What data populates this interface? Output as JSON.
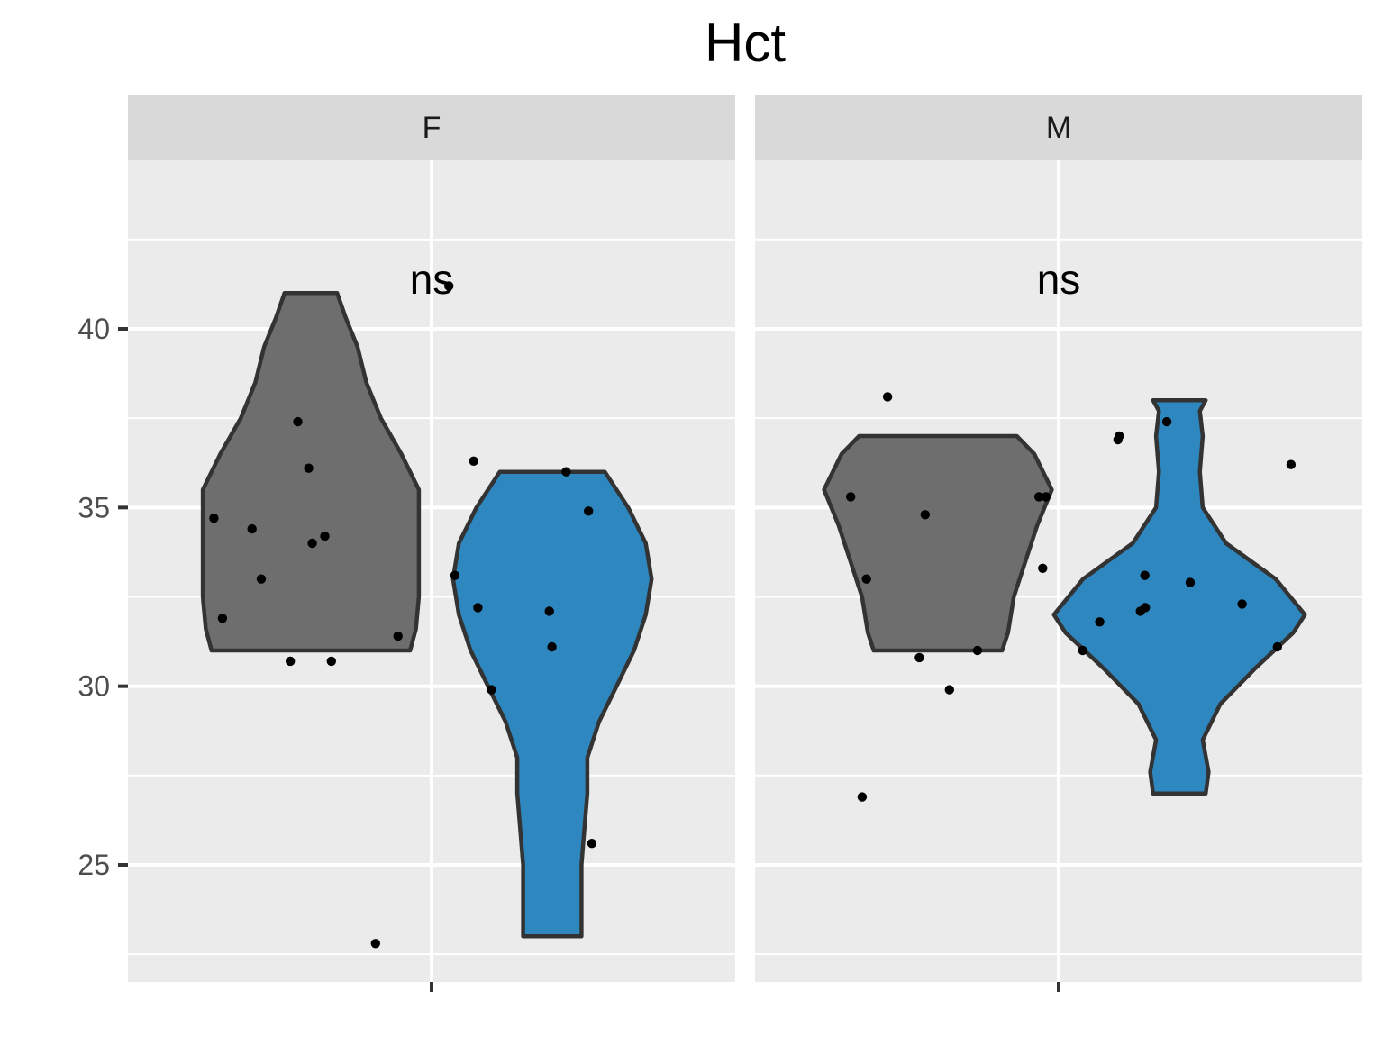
{
  "chart_data": {
    "type": "violin",
    "title": "Hct",
    "xlabel": "",
    "ylabel": "",
    "ylim": [
      21.7,
      44.5
    ],
    "y_ticks": [
      25,
      30,
      35,
      40
    ],
    "grid": true,
    "legend": "none",
    "colors": {
      "group1": "#6e6e6e",
      "group2": "#2f87c0",
      "outline": "#333333",
      "point": "#000000",
      "panel_bg": "#ebebeb",
      "strip_bg": "#d9d9d9",
      "grid": "#ffffff"
    },
    "panels": [
      {
        "strip": "F",
        "significance": "ns",
        "violins": [
          {
            "group": 1,
            "min": 31.0,
            "max": 41.0,
            "profile": [
              [
                31.0,
                0.34
              ],
              [
                31.6,
                0.36
              ],
              [
                32.5,
                0.37
              ],
              [
                33.5,
                0.37
              ],
              [
                34.5,
                0.37
              ],
              [
                35.5,
                0.37
              ],
              [
                36.5,
                0.31
              ],
              [
                37.5,
                0.24
              ],
              [
                38.5,
                0.19
              ],
              [
                39.5,
                0.16
              ],
              [
                40.3,
                0.12
              ],
              [
                41.0,
                0.09
              ]
            ],
            "points": [
              36.1,
              34.2,
              31.9,
              34.4,
              37.4,
              34.0,
              34.7,
              31.4,
              30.7,
              30.7,
              33.0,
              22.8
            ]
          },
          {
            "group": 2,
            "min": 23.0,
            "max": 36.0,
            "profile": [
              [
                23.0,
                0.1
              ],
              [
                24.0,
                0.1
              ],
              [
                25.0,
                0.1
              ],
              [
                26.0,
                0.11
              ],
              [
                27.0,
                0.12
              ],
              [
                28.0,
                0.12
              ],
              [
                29.0,
                0.16
              ],
              [
                30.0,
                0.22
              ],
              [
                31.0,
                0.28
              ],
              [
                32.0,
                0.32
              ],
              [
                33.0,
                0.34
              ],
              [
                34.0,
                0.32
              ],
              [
                35.0,
                0.26
              ],
              [
                36.0,
                0.18
              ]
            ],
            "points": [
              34.9,
              33.1,
              31.1,
              29.9,
              25.6,
              36.3,
              36.0,
              32.1,
              32.2,
              41.2
            ]
          }
        ]
      },
      {
        "strip": "M",
        "significance": "ns",
        "violins": [
          {
            "group": 1,
            "min": 31.0,
            "max": 37.0,
            "profile": [
              [
                31.0,
                0.22
              ],
              [
                31.5,
                0.24
              ],
              [
                32.5,
                0.26
              ],
              [
                33.5,
                0.3
              ],
              [
                34.5,
                0.34
              ],
              [
                35.5,
                0.39
              ],
              [
                36.5,
                0.33
              ],
              [
                37.0,
                0.27
              ]
            ],
            "points": [
              35.3,
              35.3,
              35.3,
              34.8,
              33.3,
              33.0,
              30.8,
              29.9,
              31.0,
              38.1,
              26.9
            ]
          },
          {
            "group": 2,
            "min": 27.0,
            "max": 38.0,
            "profile": [
              [
                27.0,
                0.09
              ],
              [
                27.6,
                0.1
              ],
              [
                28.5,
                0.08
              ],
              [
                29.5,
                0.14
              ],
              [
                30.5,
                0.26
              ],
              [
                31.5,
                0.39
              ],
              [
                32.0,
                0.43
              ],
              [
                33.0,
                0.33
              ],
              [
                34.0,
                0.16
              ],
              [
                35.0,
                0.08
              ],
              [
                36.0,
                0.07
              ],
              [
                37.0,
                0.08
              ],
              [
                37.7,
                0.07
              ],
              [
                38.0,
                0.09
              ]
            ],
            "points": [
              36.2,
              37.4,
              36.9,
              32.9,
              32.1,
              31.8,
              32.3,
              32.2,
              33.1,
              31.0,
              31.1,
              37.0
            ]
          }
        ]
      }
    ]
  }
}
